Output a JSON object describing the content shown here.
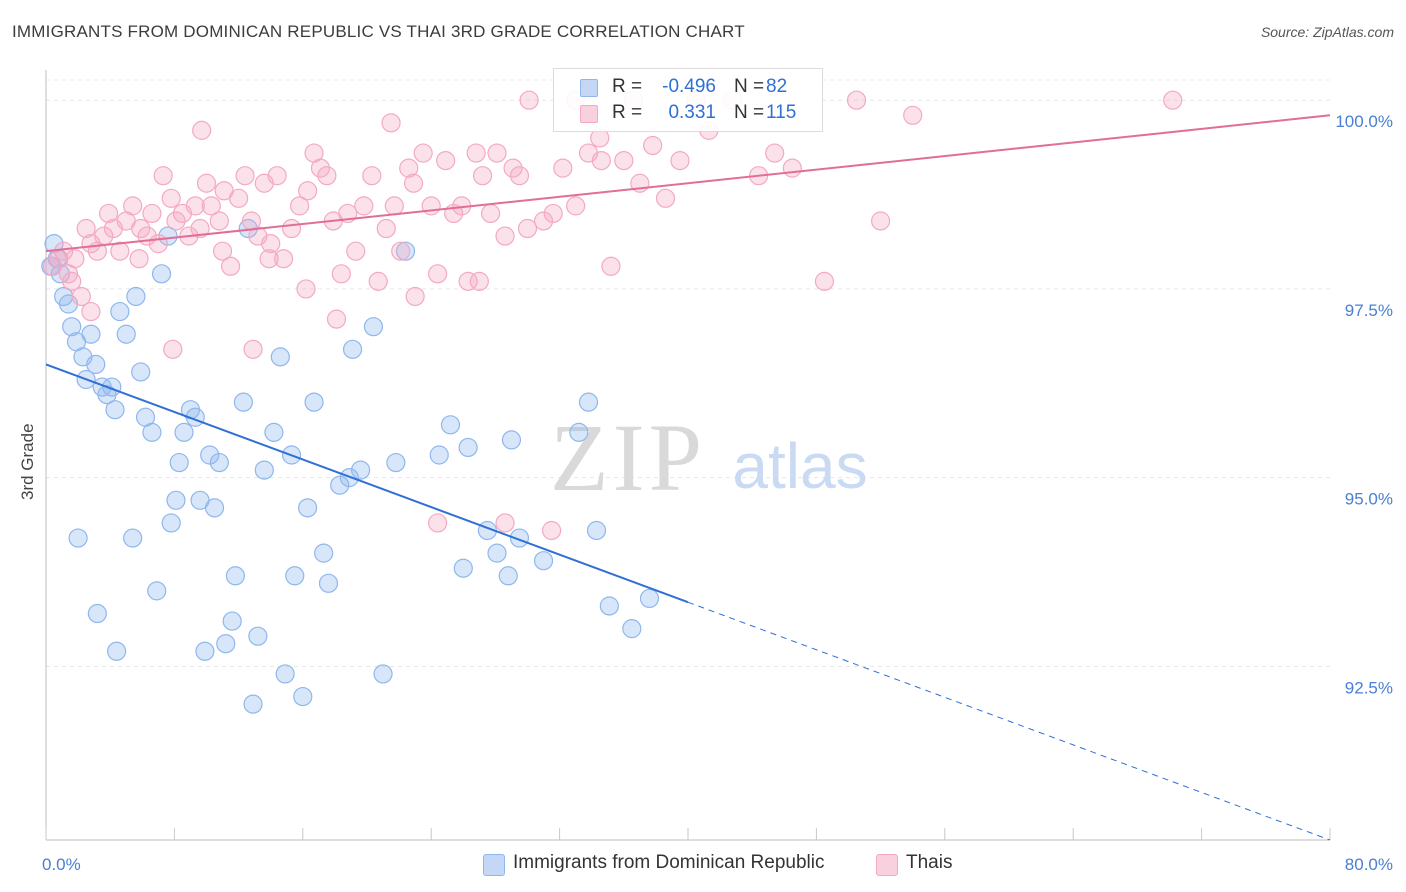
{
  "header": {
    "title": "IMMIGRANTS FROM DOMINICAN REPUBLIC VS THAI 3RD GRADE CORRELATION CHART",
    "source": "Source: ZipAtlas.com"
  },
  "watermark": {
    "zip": "ZIP",
    "atlas": "atlas"
  },
  "legend": {
    "rows": [
      {
        "r_label": "R =",
        "r_value": "-0.496",
        "n_label": "N =",
        "n_value": "82",
        "color": "#8fb7ee"
      },
      {
        "r_label": "R =",
        "r_value": "0.331",
        "n_label": "N =",
        "n_value": "115",
        "color": "#f4a9c2"
      }
    ]
  },
  "bottom_legend": [
    {
      "label": "Immigrants from Dominican Republic",
      "color": "#8fb7ee"
    },
    {
      "label": "Thais",
      "color": "#f4a9c2"
    }
  ],
  "chart_data": {
    "type": "scatter",
    "title": "IMMIGRANTS FROM DOMINICAN REPUBLIC VS THAI 3RD GRADE CORRELATION CHART",
    "xlabel": "",
    "ylabel": "3rd Grade",
    "xlim": [
      0,
      80
    ],
    "ylim": [
      90.2,
      100.4
    ],
    "x_tick_labels": [
      "0.0%",
      "80.0%"
    ],
    "y_ticks": [
      92.5,
      95.0,
      97.5,
      100.0
    ],
    "y_tick_labels": [
      "92.5%",
      "95.0%",
      "97.5%",
      "100.0%"
    ],
    "grid": true,
    "series": [
      {
        "name": "Immigrants from Dominican Republic",
        "color": "#8fb7ee",
        "trend": {
          "x0": 0,
          "y0": 96.5,
          "x1": 40,
          "y1": 93.35,
          "dash_to_x": 80,
          "dash_to_y": 90.2,
          "color": "#2f6fd6"
        },
        "points": [
          [
            0.3,
            97.8
          ],
          [
            0.5,
            98.1
          ],
          [
            0.7,
            97.9
          ],
          [
            0.9,
            97.7
          ],
          [
            1.1,
            97.4
          ],
          [
            1.4,
            97.3
          ],
          [
            1.6,
            97.0
          ],
          [
            1.9,
            96.8
          ],
          [
            2.3,
            96.6
          ],
          [
            2.5,
            96.3
          ],
          [
            2.8,
            96.9
          ],
          [
            3.1,
            96.5
          ],
          [
            3.5,
            96.2
          ],
          [
            3.8,
            96.1
          ],
          [
            4.1,
            96.2
          ],
          [
            4.3,
            95.9
          ],
          [
            4.6,
            97.2
          ],
          [
            5.0,
            96.9
          ],
          [
            5.6,
            97.4
          ],
          [
            5.9,
            96.4
          ],
          [
            6.2,
            95.8
          ],
          [
            6.6,
            95.6
          ],
          [
            7.2,
            97.7
          ],
          [
            7.6,
            98.2
          ],
          [
            8.1,
            94.7
          ],
          [
            8.3,
            95.2
          ],
          [
            8.6,
            95.6
          ],
          [
            9.0,
            95.9
          ],
          [
            9.3,
            95.8
          ],
          [
            9.6,
            94.7
          ],
          [
            10.2,
            95.3
          ],
          [
            10.5,
            94.6
          ],
          [
            10.8,
            95.2
          ],
          [
            11.2,
            92.8
          ],
          [
            11.6,
            93.1
          ],
          [
            11.8,
            93.7
          ],
          [
            12.3,
            96.0
          ],
          [
            12.6,
            98.3
          ],
          [
            12.9,
            92.0
          ],
          [
            13.2,
            92.9
          ],
          [
            13.6,
            95.1
          ],
          [
            14.2,
            95.6
          ],
          [
            14.6,
            96.6
          ],
          [
            14.9,
            92.4
          ],
          [
            15.3,
            95.3
          ],
          [
            15.5,
            93.7
          ],
          [
            16.0,
            92.1
          ],
          [
            16.3,
            94.6
          ],
          [
            16.7,
            96.0
          ],
          [
            17.3,
            94.0
          ],
          [
            17.6,
            93.6
          ],
          [
            18.3,
            94.9
          ],
          [
            18.9,
            95.0
          ],
          [
            19.1,
            96.7
          ],
          [
            19.6,
            95.1
          ],
          [
            20.4,
            97.0
          ],
          [
            21.0,
            92.4
          ],
          [
            21.8,
            95.2
          ],
          [
            22.4,
            98.0
          ],
          [
            24.5,
            95.3
          ],
          [
            25.2,
            95.7
          ],
          [
            26.0,
            93.8
          ],
          [
            26.3,
            95.4
          ],
          [
            27.5,
            94.3
          ],
          [
            28.1,
            94.0
          ],
          [
            28.8,
            93.7
          ],
          [
            29.0,
            95.5
          ],
          [
            29.5,
            94.2
          ],
          [
            31.0,
            93.9
          ],
          [
            33.2,
            95.6
          ],
          [
            33.8,
            96.0
          ],
          [
            34.3,
            94.3
          ],
          [
            35.1,
            93.3
          ],
          [
            36.5,
            93.0
          ],
          [
            37.6,
            93.4
          ],
          [
            2.0,
            94.2
          ],
          [
            7.8,
            94.4
          ],
          [
            5.4,
            94.2
          ],
          [
            9.9,
            92.7
          ],
          [
            4.4,
            92.7
          ],
          [
            3.2,
            93.2
          ],
          [
            6.9,
            93.5
          ]
        ]
      },
      {
        "name": "Thais",
        "color": "#f4a9c2",
        "trend": {
          "x0": 0,
          "y0": 98.0,
          "x1": 80,
          "y1": 99.8,
          "color": "#e06e98"
        },
        "points": [
          [
            0.4,
            97.8
          ],
          [
            0.8,
            97.9
          ],
          [
            1.1,
            98.0
          ],
          [
            1.4,
            97.7
          ],
          [
            1.8,
            97.9
          ],
          [
            2.2,
            97.4
          ],
          [
            2.5,
            98.3
          ],
          [
            2.8,
            98.1
          ],
          [
            3.2,
            98.0
          ],
          [
            3.6,
            98.2
          ],
          [
            3.9,
            98.5
          ],
          [
            4.2,
            98.3
          ],
          [
            4.6,
            98.0
          ],
          [
            5.0,
            98.4
          ],
          [
            5.4,
            98.6
          ],
          [
            5.9,
            98.3
          ],
          [
            6.3,
            98.2
          ],
          [
            6.6,
            98.5
          ],
          [
            7.0,
            98.1
          ],
          [
            7.3,
            99.0
          ],
          [
            7.8,
            98.7
          ],
          [
            8.1,
            98.4
          ],
          [
            8.5,
            98.5
          ],
          [
            8.9,
            98.2
          ],
          [
            9.3,
            98.6
          ],
          [
            9.6,
            98.3
          ],
          [
            10.0,
            98.9
          ],
          [
            10.3,
            98.6
          ],
          [
            10.8,
            98.4
          ],
          [
            11.1,
            98.8
          ],
          [
            11.5,
            97.8
          ],
          [
            12.0,
            98.7
          ],
          [
            12.4,
            99.0
          ],
          [
            12.8,
            98.4
          ],
          [
            13.2,
            98.2
          ],
          [
            13.6,
            98.9
          ],
          [
            14.0,
            98.1
          ],
          [
            14.4,
            99.0
          ],
          [
            14.8,
            97.9
          ],
          [
            15.3,
            98.3
          ],
          [
            15.8,
            98.6
          ],
          [
            16.2,
            97.5
          ],
          [
            16.7,
            99.3
          ],
          [
            17.1,
            99.1
          ],
          [
            17.5,
            99.0
          ],
          [
            17.9,
            98.4
          ],
          [
            18.4,
            97.7
          ],
          [
            18.8,
            98.5
          ],
          [
            19.3,
            98.0
          ],
          [
            19.8,
            98.6
          ],
          [
            20.3,
            99.0
          ],
          [
            20.7,
            97.6
          ],
          [
            21.2,
            98.3
          ],
          [
            21.7,
            98.6
          ],
          [
            22.1,
            98.0
          ],
          [
            22.6,
            99.1
          ],
          [
            23.0,
            97.4
          ],
          [
            23.5,
            99.3
          ],
          [
            24.0,
            98.6
          ],
          [
            24.4,
            97.7
          ],
          [
            24.9,
            99.2
          ],
          [
            25.4,
            98.5
          ],
          [
            25.9,
            98.6
          ],
          [
            26.3,
            97.6
          ],
          [
            26.8,
            99.3
          ],
          [
            27.2,
            99.0
          ],
          [
            27.7,
            98.5
          ],
          [
            28.1,
            99.3
          ],
          [
            28.6,
            98.2
          ],
          [
            29.1,
            99.1
          ],
          [
            29.5,
            99.0
          ],
          [
            30.0,
            98.3
          ],
          [
            31.0,
            98.4
          ],
          [
            31.6,
            98.5
          ],
          [
            32.2,
            99.1
          ],
          [
            33.0,
            98.6
          ],
          [
            33.8,
            99.3
          ],
          [
            34.6,
            99.2
          ],
          [
            35.2,
            97.8
          ],
          [
            36.0,
            99.2
          ],
          [
            37.0,
            98.9
          ],
          [
            37.8,
            99.4
          ],
          [
            38.6,
            98.7
          ],
          [
            39.5,
            99.2
          ],
          [
            40.5,
            100.0
          ],
          [
            41.3,
            99.6
          ],
          [
            42.8,
            100.0
          ],
          [
            44.4,
            99.0
          ],
          [
            45.4,
            99.3
          ],
          [
            46.5,
            99.1
          ],
          [
            48.5,
            97.6
          ],
          [
            50.5,
            100.0
          ],
          [
            52.0,
            98.4
          ],
          [
            54.0,
            99.8
          ],
          [
            70.2,
            100.0
          ],
          [
            21.5,
            99.7
          ],
          [
            9.7,
            99.6
          ],
          [
            2.8,
            97.2
          ],
          [
            7.9,
            96.7
          ],
          [
            13.9,
            97.9
          ],
          [
            18.1,
            97.1
          ],
          [
            1.6,
            97.6
          ],
          [
            24.4,
            94.4
          ],
          [
            28.6,
            94.4
          ],
          [
            31.5,
            94.3
          ],
          [
            12.9,
            96.7
          ],
          [
            33.0,
            100.0
          ],
          [
            34.5,
            99.5
          ],
          [
            30.1,
            100.0
          ],
          [
            36.6,
            100.0
          ],
          [
            16.3,
            98.8
          ],
          [
            5.8,
            97.9
          ],
          [
            22.9,
            98.9
          ],
          [
            27.0,
            97.6
          ],
          [
            11.0,
            98.0
          ]
        ]
      }
    ]
  }
}
